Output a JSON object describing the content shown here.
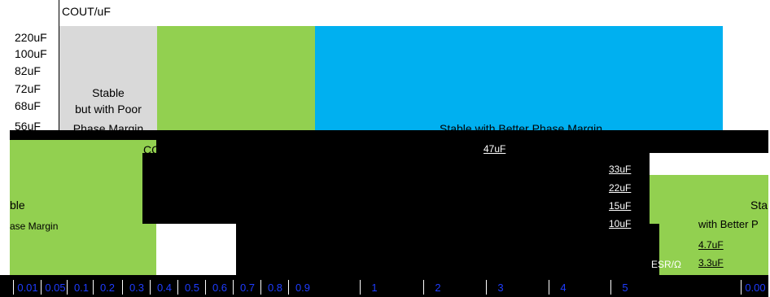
{
  "chart_data": {
    "type": "heatmap",
    "title": "COUT/uF",
    "y_categories": [
      "220uF",
      "100uF",
      "82uF",
      "72uF",
      "68uF",
      "56uF"
    ],
    "regions": [
      {
        "label_lines": [
          "Stable",
          "but with Poor",
          "Phase Margin"
        ],
        "color": "#d9d9d9"
      },
      {
        "label_lines": [],
        "color": "#92d050"
      },
      {
        "label_lines": [
          "Stable with Better Phase Margin"
        ],
        "color": "#00b0f0"
      }
    ],
    "lower_panel": {
      "title": "COUT+10uF low ESR",
      "cap_labels": [
        "47uF",
        "33uF",
        "22uF",
        "15uF",
        "10uF",
        "4.7uF",
        "3.3uF"
      ],
      "left_region_text": [
        "ble",
        "ase Margin"
      ],
      "right_region_text": [
        "Sta",
        "with Better P"
      ],
      "esr_label": "ESR/Ω"
    },
    "x_tick_labels": [
      "0.01",
      "0.05",
      "0.1",
      "0.2",
      "0.3",
      "0.4",
      "0.5",
      "0.6",
      "0.7",
      "0.8",
      "0.9",
      "1",
      "2",
      "3",
      "4",
      "5",
      "0.00"
    ]
  },
  "colors": {
    "gray": "#d9d9d9",
    "green": "#92d050",
    "blue": "#00b0f0",
    "black": "#000000",
    "axis": "#1e3cff"
  }
}
